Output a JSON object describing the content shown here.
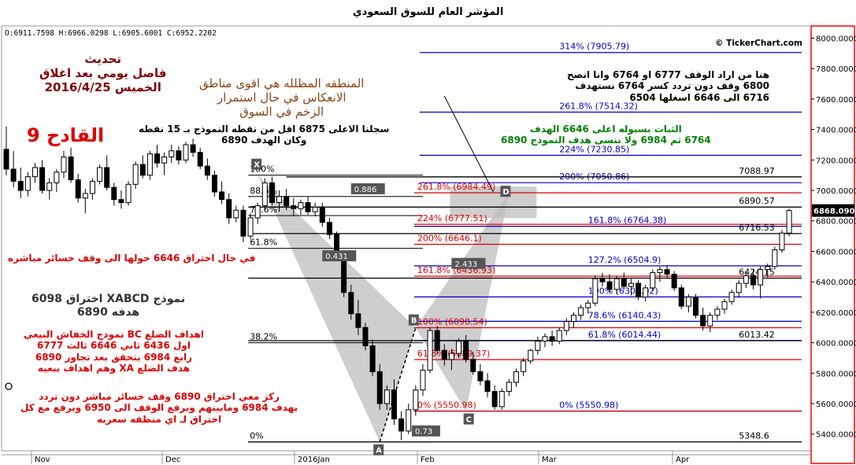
{
  "title": "المؤشر العام للسوق السعودي",
  "ohlc": "O:6911.7598  H:6966.0298  L:6905.6001  C:6952.2202",
  "watermark": "© TickerChart.com",
  "colors": {
    "up": "#ffffff",
    "down": "#000000",
    "fibBlue": "#0000cc",
    "fibRed": "#e00000",
    "shade": "#bdbdbd",
    "priceTag": "#000000",
    "axisBorder": "#ff0000"
  },
  "notes": {
    "update": [
      "تحديث",
      "فاصل يومي بعد اغلاق",
      "الخميس 2016/4/25"
    ],
    "qadeh": "القادح 9",
    "shaded_zone": [
      "المنطقه المظلله هي اقوى مناطق",
      "الانعكاس في حال استمرار",
      "الزخم في السوق"
    ],
    "recorded_high": [
      "سجلنا الاعلى 6875 اقل من نقطه النموذج بـ 15 نقطه",
      "وكان الهدف 6890"
    ],
    "stoploss": [
      "هنا من اراد الوقف 6777 او 6764 وانا انصح",
      "6800 وقف دون تردد كسر 6764 نستهدف",
      "6716 الى 6646 اسغلها 6504"
    ],
    "stability": [
      "الثبات بسيوله اعلى 6646 الهدف",
      "6764 ثم 6984 ولا ننسى هدف النموذج 6890"
    ],
    "breach_6646": "في حال اختراق 6646 حولها الى وقف خسائر مباشره",
    "xabcd": [
      "نموذج XABCD اختراق 6098",
      "هدفه 6890"
    ],
    "bc_targets": [
      "اهداف الضلع BC نموذج الخفاش البيعي",
      "اول 6436 ثاني 6646 ثالث 6777",
      "رابع 6984 يتحقق بعد تجاوز 6890",
      "هدف الضلع XA وهم اهداف بيعيه"
    ],
    "focus": [
      "ركز معي اختراق 6890 وقف خسائر مباشر دون تردد",
      "بهدف 6984 ومابينهم وبرفع الوقف الى 6950 وبرفع مع كل",
      "اختراق لـ اي منطقه سعريه"
    ]
  },
  "chart_data": {
    "type": "candlestick",
    "title": "المؤشر العام للسوق السعودي",
    "x_labels": [
      "Nov",
      "Dec",
      "2016Jan",
      "Feb",
      "Mar",
      "Apr"
    ],
    "y_ticks": [
      "8000.0000",
      "7800.0000",
      "7600.0000",
      "7400.0000",
      "7200.0000",
      "7000.0000",
      "6800.0000",
      "6600.0000",
      "6400.0000",
      "6200.0000",
      "6000.0000",
      "5800.0000",
      "5600.0000",
      "5400.0000"
    ],
    "ylim": [
      5290,
      8080
    ],
    "last_price": "6868.0900",
    "candles": [
      [
        0,
        7270,
        7420,
        7100,
        7140
      ],
      [
        1,
        7140,
        7260,
        7020,
        7060
      ],
      [
        2,
        7060,
        7150,
        6950,
        7000
      ],
      [
        3,
        7000,
        7120,
        6960,
        7090
      ],
      [
        4,
        7090,
        7180,
        7050,
        7150
      ],
      [
        5,
        7150,
        7200,
        6980,
        7000
      ],
      [
        6,
        7000,
        7080,
        6940,
        7050
      ],
      [
        7,
        7050,
        7140,
        6990,
        7120
      ],
      [
        8,
        7120,
        7260,
        7080,
        7220
      ],
      [
        9,
        7220,
        7280,
        7050,
        7070
      ],
      [
        10,
        7070,
        7110,
        6920,
        6950
      ],
      [
        11,
        6950,
        7010,
        6850,
        6980
      ],
      [
        12,
        6980,
        7080,
        6940,
        7060
      ],
      [
        13,
        7060,
        7170,
        7040,
        7150
      ],
      [
        14,
        7150,
        7230,
        7000,
        7020
      ],
      [
        15,
        7020,
        7050,
        6900,
        6940
      ],
      [
        16,
        6940,
        7000,
        6880,
        6920
      ],
      [
        17,
        6920,
        7060,
        6900,
        7040
      ],
      [
        18,
        7040,
        7190,
        7010,
        7170
      ],
      [
        19,
        7170,
        7230,
        7080,
        7100
      ],
      [
        20,
        7100,
        7260,
        7070,
        7240
      ],
      [
        21,
        7240,
        7300,
        7150,
        7180
      ],
      [
        22,
        7180,
        7250,
        7100,
        7220
      ],
      [
        23,
        7220,
        7300,
        7180,
        7260
      ],
      [
        24,
        7260,
        7290,
        7170,
        7200
      ],
      [
        25,
        7200,
        7320,
        7180,
        7300
      ],
      [
        26,
        7300,
        7340,
        7220,
        7250
      ],
      [
        27,
        7250,
        7280,
        7140,
        7160
      ],
      [
        28,
        7160,
        7210,
        7070,
        7100
      ],
      [
        29,
        7100,
        7130,
        6960,
        6990
      ],
      [
        30,
        6990,
        7060,
        6910,
        6940
      ],
      [
        31,
        6940,
        6980,
        6780,
        6820
      ],
      [
        32,
        6820,
        6900,
        6790,
        6870
      ],
      [
        33,
        6870,
        6900,
        6660,
        6700
      ],
      [
        34,
        6700,
        6850,
        6680,
        6820
      ],
      [
        35,
        6820,
        6920,
        6780,
        6900
      ],
      [
        36,
        6900,
        7080,
        6880,
        7050
      ],
      [
        37,
        7050,
        7090,
        6900,
        6920
      ],
      [
        38,
        6920,
        7000,
        6860,
        6960
      ],
      [
        39,
        6960,
        7010,
        6870,
        6900
      ],
      [
        40,
        6900,
        6950,
        6830,
        6880
      ],
      [
        41,
        6880,
        6940,
        6840,
        6920
      ],
      [
        42,
        6920,
        6960,
        6840,
        6860
      ],
      [
        43,
        6860,
        6920,
        6830,
        6890
      ],
      [
        44,
        6890,
        6920,
        6760,
        6790
      ],
      [
        45,
        6790,
        6820,
        6680,
        6710
      ],
      [
        46,
        6710,
        6730,
        6540,
        6560
      ],
      [
        47,
        6560,
        6590,
        6300,
        6330
      ],
      [
        48,
        6330,
        6380,
        6150,
        6190
      ],
      [
        49,
        6190,
        6280,
        6050,
        6100
      ],
      [
        50,
        6100,
        6130,
        5950,
        5980
      ],
      [
        51,
        5980,
        6020,
        5780,
        5810
      ],
      [
        52,
        5810,
        5860,
        5560,
        5600
      ],
      [
        53,
        5600,
        5720,
        5560,
        5690
      ],
      [
        54,
        5690,
        5760,
        5460,
        5500
      ],
      [
        55,
        5500,
        5550,
        5360,
        5420
      ],
      [
        56,
        5420,
        5600,
        5400,
        5560
      ],
      [
        57,
        5560,
        5720,
        5520,
        5690
      ],
      [
        58,
        5690,
        5860,
        5650,
        5820
      ],
      [
        59,
        5820,
        6100,
        5800,
        6080
      ],
      [
        60,
        6080,
        6110,
        5920,
        5950
      ],
      [
        61,
        5950,
        5990,
        5850,
        5890
      ],
      [
        62,
        5890,
        5960,
        5820,
        5930
      ],
      [
        63,
        5930,
        6030,
        5900,
        6010
      ],
      [
        64,
        6010,
        6050,
        5870,
        5890
      ],
      [
        65,
        5890,
        5940,
        5790,
        5810
      ],
      [
        66,
        5810,
        5860,
        5720,
        5750
      ],
      [
        67,
        5750,
        5800,
        5640,
        5680
      ],
      [
        68,
        5680,
        5720,
        5560,
        5580
      ],
      [
        69,
        5580,
        5700,
        5560,
        5680
      ],
      [
        70,
        5680,
        5760,
        5650,
        5740
      ],
      [
        71,
        5740,
        5830,
        5710,
        5810
      ],
      [
        72,
        5810,
        5900,
        5780,
        5880
      ],
      [
        73,
        5880,
        5960,
        5860,
        5950
      ],
      [
        74,
        5950,
        6040,
        5920,
        6010
      ],
      [
        75,
        6010,
        6060,
        5970,
        6040
      ],
      [
        76,
        6040,
        6080,
        5980,
        6010
      ],
      [
        77,
        6010,
        6100,
        5990,
        6080
      ],
      [
        78,
        6080,
        6160,
        6050,
        6140
      ],
      [
        79,
        6140,
        6200,
        6100,
        6180
      ],
      [
        80,
        6180,
        6250,
        6150,
        6230
      ],
      [
        81,
        6230,
        6280,
        6190,
        6260
      ],
      [
        82,
        6260,
        6440,
        6240,
        6420
      ],
      [
        83,
        6420,
        6460,
        6370,
        6400
      ],
      [
        84,
        6400,
        6450,
        6330,
        6350
      ],
      [
        85,
        6350,
        6440,
        6320,
        6420
      ],
      [
        86,
        6420,
        6460,
        6350,
        6370
      ],
      [
        87,
        6370,
        6420,
        6310,
        6390
      ],
      [
        88,
        6390,
        6410,
        6280,
        6300
      ],
      [
        89,
        6300,
        6380,
        6270,
        6360
      ],
      [
        90,
        6360,
        6480,
        6340,
        6460
      ],
      [
        91,
        6460,
        6500,
        6400,
        6480
      ],
      [
        92,
        6480,
        6510,
        6420,
        6450
      ],
      [
        93,
        6450,
        6470,
        6340,
        6360
      ],
      [
        94,
        6360,
        6380,
        6220,
        6240
      ],
      [
        95,
        6240,
        6320,
        6200,
        6300
      ],
      [
        96,
        6300,
        6320,
        6160,
        6180
      ],
      [
        97,
        6180,
        6230,
        6080,
        6110
      ],
      [
        98,
        6110,
        6200,
        6070,
        6180
      ],
      [
        99,
        6180,
        6240,
        6150,
        6220
      ],
      [
        100,
        6220,
        6290,
        6190,
        6270
      ],
      [
        101,
        6270,
        6350,
        6250,
        6330
      ],
      [
        102,
        6330,
        6410,
        6300,
        6390
      ],
      [
        103,
        6390,
        6470,
        6360,
        6440
      ],
      [
        104,
        6440,
        6480,
        6350,
        6380
      ],
      [
        105,
        6380,
        6500,
        6290,
        6480
      ],
      [
        106,
        6480,
        6520,
        6430,
        6500
      ],
      [
        107,
        6500,
        6630,
        6480,
        6610
      ],
      [
        108,
        6610,
        6740,
        6590,
        6720
      ],
      [
        109,
        6720,
        6880,
        6700,
        6868
      ]
    ],
    "fib_levels_left": [
      {
        "label": "100%",
        "value": 7100
      },
      {
        "label": "88.6%",
        "value": 6960
      },
      {
        "label": "78.6%",
        "value": 6835
      },
      {
        "label": "61.8%",
        "value": 6620
      },
      {
        "label": "38.2%",
        "value": 6000
      },
      {
        "label": "0%",
        "value": 5348.6
      }
    ],
    "fib_levels_right": [
      {
        "label": "314% (7905.79)",
        "value": 7905.79,
        "color": "blue"
      },
      {
        "label": "261.8% (7514.32)",
        "value": 7514.32,
        "color": "blue"
      },
      {
        "label": "224% (7230.85)",
        "value": 7230.85,
        "color": "blue"
      },
      {
        "label": "200% (7050.86)",
        "value": 7050.86,
        "color": "blue"
      },
      {
        "label": "261.8% (6984.49)",
        "value": 6984.49,
        "color": "red"
      },
      {
        "label": "224% (6777.51)",
        "value": 6777.51,
        "color": "red"
      },
      {
        "label": "161.8% (6764.38)",
        "value": 6764.38,
        "color": "blue"
      },
      {
        "label": "200% (6646.1)",
        "value": 6646.1,
        "color": "red"
      },
      {
        "label": "127.2% (6504.9)",
        "value": 6504.9,
        "color": "blue"
      },
      {
        "label": "161.8% (6436.93)",
        "value": 6436.93,
        "color": "red"
      },
      {
        "label": "100% (6300.92)",
        "value": 6300.92,
        "color": "blue"
      },
      {
        "label": "78.6% (6140.43)",
        "value": 6140.43,
        "color": "blue"
      },
      {
        "label": "100% (6098.54)",
        "value": 6098.54,
        "color": "red"
      },
      {
        "label": "61.8% (6014.44)",
        "value": 6014.44,
        "color": "blue"
      },
      {
        "label": "61.8% (5889.37)",
        "value": 5889.37,
        "color": "red"
      },
      {
        "label": "0% (5550.98)",
        "value": 5550.98,
        "color": "blue"
      },
      {
        "label": "0% (5550.98)",
        "value": 5550.98,
        "color": "red"
      }
    ],
    "price_labels": [
      {
        "label": "7088.97",
        "value": 7088.97
      },
      {
        "label": "6890.57",
        "value": 6890.57
      },
      {
        "label": "6716.53",
        "value": 6716.53
      },
      {
        "label": "6424.15",
        "value": 6424.15
      },
      {
        "label": "6013.42",
        "value": 6013.42
      },
      {
        "label": "5348.6",
        "value": 5348.6
      }
    ],
    "pattern_points": [
      {
        "label": "X",
        "value": 7100
      },
      {
        "label": "A",
        "value": 5348.6
      },
      {
        "label": "B",
        "value": 6098
      },
      {
        "label": "C",
        "value": 5550.98
      },
      {
        "label": "D",
        "value": 6984
      }
    ],
    "ratio_labels": [
      "0.886",
      "0.431",
      "2.433",
      "0.73"
    ]
  }
}
